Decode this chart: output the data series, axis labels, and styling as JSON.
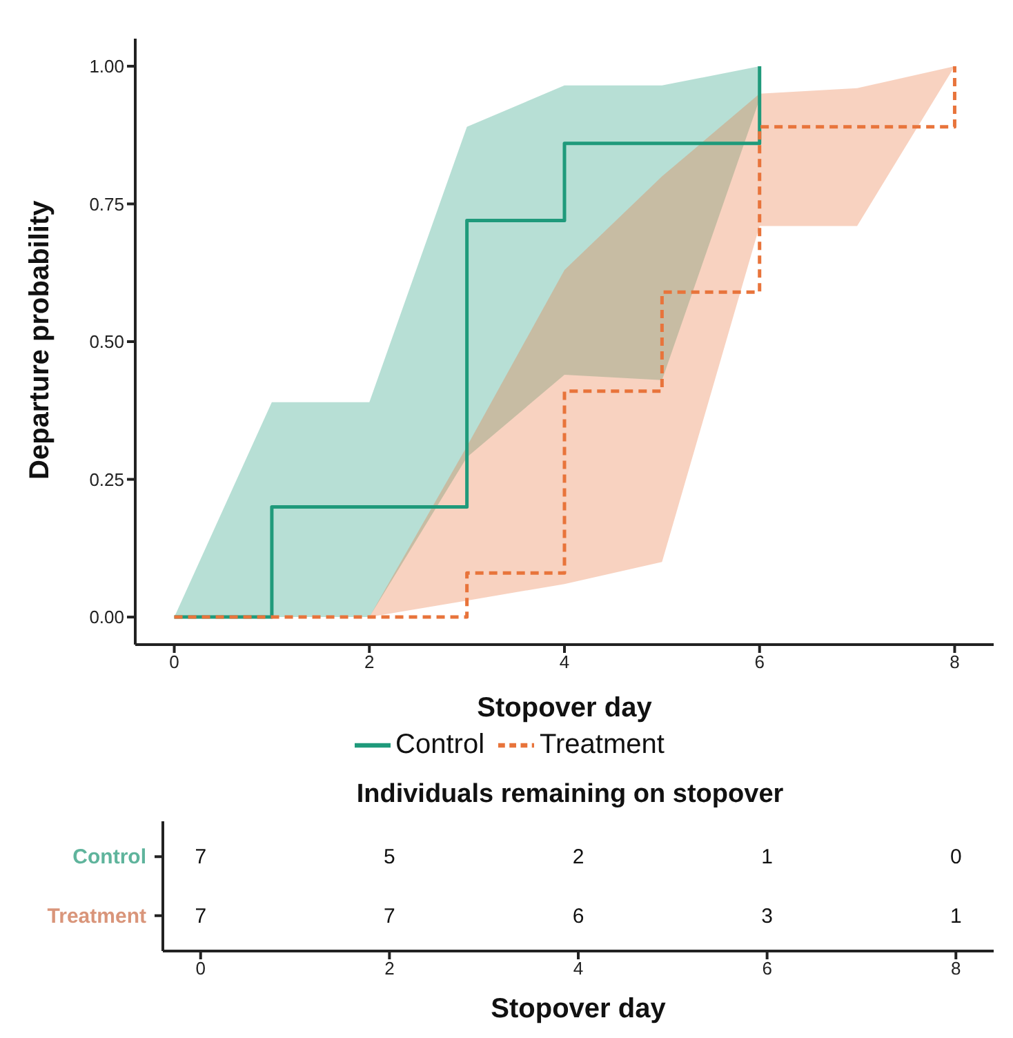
{
  "chart_data": [
    {
      "type": "step",
      "xlabel": "Stopover day",
      "ylabel": "Departure probability",
      "xlim": [
        -0.4,
        8.4
      ],
      "xticks": [
        0,
        2,
        4,
        6,
        8
      ],
      "ylim": [
        -0.05,
        1.05
      ],
      "yticks": [
        {
          "value": 0,
          "label": "0.00"
        },
        {
          "value": 0.25,
          "label": "0.25"
        },
        {
          "value": 0.5,
          "label": "0.50"
        },
        {
          "value": 0.75,
          "label": "0.75"
        },
        {
          "value": 1,
          "label": "1.00"
        }
      ],
      "legend": "bottom",
      "grid": false,
      "series": [
        {
          "name": "Control",
          "color": "#1f9a7b",
          "line_style": "solid",
          "x": [
            0,
            1,
            2,
            3,
            4,
            5,
            6
          ],
          "values": [
            0,
            0.2,
            0.2,
            0.72,
            0.86,
            0.86,
            1.0
          ],
          "lower": [
            0,
            0,
            0,
            0.29,
            0.44,
            0.43,
            0.94
          ],
          "upper": [
            0,
            0.39,
            0.39,
            0.89,
            0.965,
            0.965,
            1.0
          ]
        },
        {
          "name": "Treatment",
          "color": "#e8743b",
          "line_style": "dashed",
          "x": [
            0,
            1,
            2,
            3,
            4,
            5,
            6,
            7,
            8
          ],
          "values": [
            0,
            0,
            0,
            0.08,
            0.41,
            0.59,
            0.89,
            0.89,
            1.0
          ],
          "lower": [
            0,
            0,
            0,
            0.03,
            0.06,
            0.1,
            0.71,
            0.71,
            1.0
          ],
          "upper": [
            0,
            0,
            0,
            0.31,
            0.63,
            0.8,
            0.95,
            0.96,
            1.0
          ]
        }
      ]
    },
    {
      "type": "heatmap",
      "title": "Individuals remaining on stopover",
      "xlabel": "Stopover day",
      "categories": [
        "0",
        "2",
        "4",
        "6",
        "8"
      ],
      "y_categories": [
        "Control",
        "Treatment"
      ],
      "colors": [
        "#5fb49c",
        "#d9957a"
      ],
      "data_labels": true,
      "cells": [
        [
          7,
          5,
          2,
          1,
          0
        ],
        [
          7,
          7,
          6,
          3,
          1
        ]
      ]
    }
  ]
}
